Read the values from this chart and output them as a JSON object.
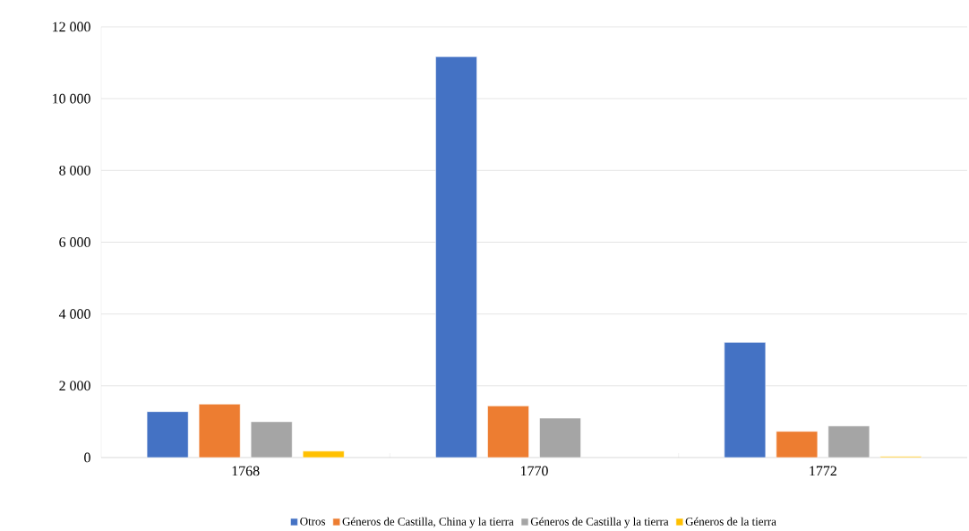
{
  "chart_data": {
    "type": "bar",
    "categories": [
      "1768",
      "1770",
      "1772"
    ],
    "series": [
      {
        "name": "Otros",
        "color": "#4472c4",
        "values": [
          1280,
          11170,
          3210
        ]
      },
      {
        "name": "Géneros de Castilla, China y la tierra",
        "color": "#ed7d31",
        "values": [
          1490,
          1440,
          730
        ]
      },
      {
        "name": "Géneros de Castilla y la tierra",
        "color": "#a5a5a5",
        "values": [
          1000,
          1100,
          880
        ]
      },
      {
        "name": "Géneros de la tierra",
        "color": "#ffc000",
        "values": [
          180,
          null,
          30
        ]
      }
    ],
    "ylim": [
      0,
      12000
    ],
    "yticks": [
      0,
      {
        "value": 2000,
        "label": "2 000"
      },
      {
        "value": 4000,
        "label": "4 000"
      },
      {
        "value": 6000,
        "label": "6 000"
      },
      {
        "value": 8000,
        "label": "8 000"
      },
      {
        "value": 10000,
        "label": "10 000"
      },
      {
        "value": 12000,
        "label": "12 000"
      }
    ],
    "grid": "y",
    "legend": "bottom"
  }
}
